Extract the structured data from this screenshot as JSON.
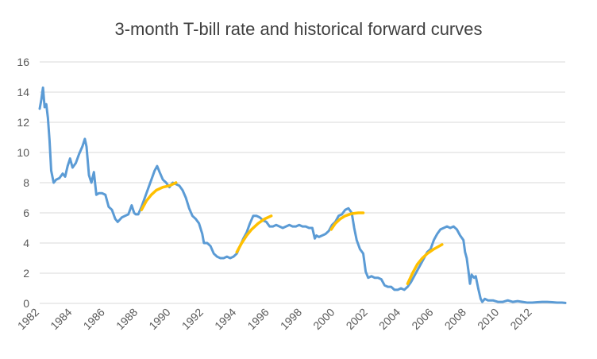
{
  "chart_data": {
    "type": "line",
    "title": "3-month T-bill rate and historical forward curves",
    "xlabel": "",
    "ylabel": "",
    "xlim": [
      1982,
      2014
    ],
    "ylim": [
      0,
      16
    ],
    "y_ticks": [
      "0",
      "2",
      "4",
      "6",
      "8",
      "10",
      "12",
      "14",
      "16"
    ],
    "x_ticks": [
      "1982",
      "1984",
      "1986",
      "1988",
      "1990",
      "1992",
      "1994",
      "1996",
      "1998",
      "2000",
      "2002",
      "2004",
      "2006",
      "2008",
      "2010",
      "2012"
    ],
    "grid": true,
    "legend": "none",
    "colors": {
      "rate": "#5b9bd5",
      "forward": "#ffc000",
      "grid": "#d9d9d9"
    },
    "series": [
      {
        "role": "rate",
        "points": [
          [
            1982.0,
            12.9
          ],
          [
            1982.1,
            13.5
          ],
          [
            1982.2,
            14.3
          ],
          [
            1982.3,
            13.0
          ],
          [
            1982.4,
            13.2
          ],
          [
            1982.5,
            12.3
          ],
          [
            1982.6,
            10.8
          ],
          [
            1982.7,
            8.8
          ],
          [
            1982.85,
            8.0
          ],
          [
            1983.0,
            8.2
          ],
          [
            1983.2,
            8.3
          ],
          [
            1983.4,
            8.6
          ],
          [
            1983.55,
            8.4
          ],
          [
            1983.7,
            9.1
          ],
          [
            1983.85,
            9.6
          ],
          [
            1984.0,
            9.0
          ],
          [
            1984.2,
            9.3
          ],
          [
            1984.4,
            9.9
          ],
          [
            1984.6,
            10.4
          ],
          [
            1984.75,
            10.9
          ],
          [
            1984.85,
            10.4
          ],
          [
            1985.0,
            8.5
          ],
          [
            1985.15,
            8.0
          ],
          [
            1985.3,
            8.7
          ],
          [
            1985.45,
            7.2
          ],
          [
            1985.6,
            7.3
          ],
          [
            1985.8,
            7.3
          ],
          [
            1986.0,
            7.2
          ],
          [
            1986.2,
            6.4
          ],
          [
            1986.4,
            6.2
          ],
          [
            1986.6,
            5.6
          ],
          [
            1986.75,
            5.4
          ],
          [
            1987.0,
            5.7
          ],
          [
            1987.2,
            5.8
          ],
          [
            1987.4,
            5.9
          ],
          [
            1987.6,
            6.5
          ],
          [
            1987.75,
            6.0
          ],
          [
            1987.85,
            5.9
          ],
          [
            1988.0,
            5.9
          ],
          [
            1988.2,
            6.4
          ],
          [
            1988.4,
            7.0
          ],
          [
            1988.6,
            7.6
          ],
          [
            1988.8,
            8.2
          ],
          [
            1989.0,
            8.8
          ],
          [
            1989.15,
            9.1
          ],
          [
            1989.3,
            8.7
          ],
          [
            1989.5,
            8.2
          ],
          [
            1989.7,
            8.0
          ],
          [
            1989.9,
            7.7
          ],
          [
            1990.1,
            8.0
          ],
          [
            1990.3,
            7.9
          ],
          [
            1990.5,
            7.8
          ],
          [
            1990.7,
            7.5
          ],
          [
            1990.9,
            7.0
          ],
          [
            1991.1,
            6.3
          ],
          [
            1991.3,
            5.8
          ],
          [
            1991.5,
            5.6
          ],
          [
            1991.7,
            5.3
          ],
          [
            1991.9,
            4.6
          ],
          [
            1992.0,
            4.0
          ],
          [
            1992.2,
            4.0
          ],
          [
            1992.4,
            3.8
          ],
          [
            1992.6,
            3.3
          ],
          [
            1992.8,
            3.1
          ],
          [
            1993.0,
            3.0
          ],
          [
            1993.2,
            3.0
          ],
          [
            1993.4,
            3.1
          ],
          [
            1993.6,
            3.0
          ],
          [
            1993.8,
            3.1
          ],
          [
            1994.0,
            3.3
          ],
          [
            1994.2,
            3.8
          ],
          [
            1994.4,
            4.3
          ],
          [
            1994.6,
            4.7
          ],
          [
            1994.8,
            5.3
          ],
          [
            1995.0,
            5.8
          ],
          [
            1995.2,
            5.8
          ],
          [
            1995.4,
            5.7
          ],
          [
            1995.6,
            5.5
          ],
          [
            1995.8,
            5.4
          ],
          [
            1996.0,
            5.1
          ],
          [
            1996.2,
            5.1
          ],
          [
            1996.4,
            5.2
          ],
          [
            1996.6,
            5.1
          ],
          [
            1996.8,
            5.0
          ],
          [
            1997.0,
            5.1
          ],
          [
            1997.2,
            5.2
          ],
          [
            1997.4,
            5.1
          ],
          [
            1997.6,
            5.1
          ],
          [
            1997.8,
            5.2
          ],
          [
            1998.0,
            5.1
          ],
          [
            1998.2,
            5.1
          ],
          [
            1998.4,
            5.0
          ],
          [
            1998.6,
            5.0
          ],
          [
            1998.75,
            4.3
          ],
          [
            1998.85,
            4.5
          ],
          [
            1999.0,
            4.4
          ],
          [
            1999.2,
            4.5
          ],
          [
            1999.4,
            4.6
          ],
          [
            1999.6,
            4.8
          ],
          [
            1999.8,
            5.2
          ],
          [
            2000.0,
            5.4
          ],
          [
            2000.2,
            5.8
          ],
          [
            2000.4,
            5.9
          ],
          [
            2000.6,
            6.2
          ],
          [
            2000.8,
            6.3
          ],
          [
            2001.0,
            6.0
          ],
          [
            2001.15,
            5.0
          ],
          [
            2001.3,
            4.2
          ],
          [
            2001.5,
            3.6
          ],
          [
            2001.7,
            3.3
          ],
          [
            2001.85,
            2.1
          ],
          [
            2002.0,
            1.7
          ],
          [
            2002.2,
            1.8
          ],
          [
            2002.4,
            1.7
          ],
          [
            2002.6,
            1.7
          ],
          [
            2002.8,
            1.6
          ],
          [
            2003.0,
            1.2
          ],
          [
            2003.2,
            1.1
          ],
          [
            2003.4,
            1.1
          ],
          [
            2003.6,
            0.9
          ],
          [
            2003.8,
            0.9
          ],
          [
            2004.0,
            1.0
          ],
          [
            2004.2,
            0.9
          ],
          [
            2004.4,
            1.1
          ],
          [
            2004.6,
            1.4
          ],
          [
            2004.8,
            1.8
          ],
          [
            2005.0,
            2.2
          ],
          [
            2005.2,
            2.6
          ],
          [
            2005.4,
            3.0
          ],
          [
            2005.6,
            3.4
          ],
          [
            2005.8,
            3.6
          ],
          [
            2006.0,
            4.2
          ],
          [
            2006.2,
            4.6
          ],
          [
            2006.4,
            4.9
          ],
          [
            2006.6,
            5.0
          ],
          [
            2006.8,
            5.1
          ],
          [
            2007.0,
            5.0
          ],
          [
            2007.2,
            5.1
          ],
          [
            2007.4,
            4.9
          ],
          [
            2007.6,
            4.5
          ],
          [
            2007.8,
            4.2
          ],
          [
            2007.9,
            3.4
          ],
          [
            2008.0,
            3.0
          ],
          [
            2008.1,
            2.2
          ],
          [
            2008.2,
            1.3
          ],
          [
            2008.3,
            1.9
          ],
          [
            2008.45,
            1.7
          ],
          [
            2008.55,
            1.8
          ],
          [
            2008.7,
            1.0
          ],
          [
            2008.85,
            0.3
          ],
          [
            2008.95,
            0.1
          ],
          [
            2009.1,
            0.3
          ],
          [
            2009.3,
            0.2
          ],
          [
            2009.6,
            0.2
          ],
          [
            2009.9,
            0.1
          ],
          [
            2010.2,
            0.1
          ],
          [
            2010.5,
            0.2
          ],
          [
            2010.8,
            0.1
          ],
          [
            2011.1,
            0.15
          ],
          [
            2011.4,
            0.1
          ],
          [
            2011.7,
            0.05
          ],
          [
            2012.0,
            0.05
          ],
          [
            2012.3,
            0.08
          ],
          [
            2012.6,
            0.1
          ],
          [
            2012.9,
            0.1
          ],
          [
            2013.2,
            0.08
          ],
          [
            2013.5,
            0.05
          ],
          [
            2013.8,
            0.05
          ],
          [
            2014.0,
            0.03
          ]
        ]
      },
      {
        "role": "forward",
        "points": [
          [
            1988.2,
            6.2
          ],
          [
            1988.5,
            6.8
          ],
          [
            1988.8,
            7.2
          ],
          [
            1989.1,
            7.5
          ],
          [
            1989.5,
            7.7
          ],
          [
            1989.9,
            7.8
          ],
          [
            1990.3,
            8.0
          ]
        ]
      },
      {
        "role": "forward",
        "points": [
          [
            1994.0,
            3.4
          ],
          [
            1994.3,
            4.0
          ],
          [
            1994.6,
            4.5
          ],
          [
            1994.9,
            4.9
          ],
          [
            1995.3,
            5.3
          ],
          [
            1995.7,
            5.6
          ],
          [
            1996.1,
            5.8
          ]
        ]
      },
      {
        "role": "forward",
        "points": [
          [
            1999.75,
            4.9
          ],
          [
            2000.0,
            5.3
          ],
          [
            2000.3,
            5.6
          ],
          [
            2000.6,
            5.8
          ],
          [
            2001.0,
            5.95
          ],
          [
            2001.4,
            6.0
          ],
          [
            2001.7,
            6.0
          ]
        ]
      },
      {
        "role": "forward",
        "points": [
          [
            2004.4,
            1.3
          ],
          [
            2004.7,
            2.0
          ],
          [
            2005.0,
            2.6
          ],
          [
            2005.3,
            3.0
          ],
          [
            2005.6,
            3.3
          ],
          [
            2006.0,
            3.6
          ],
          [
            2006.5,
            3.9
          ]
        ]
      }
    ]
  }
}
